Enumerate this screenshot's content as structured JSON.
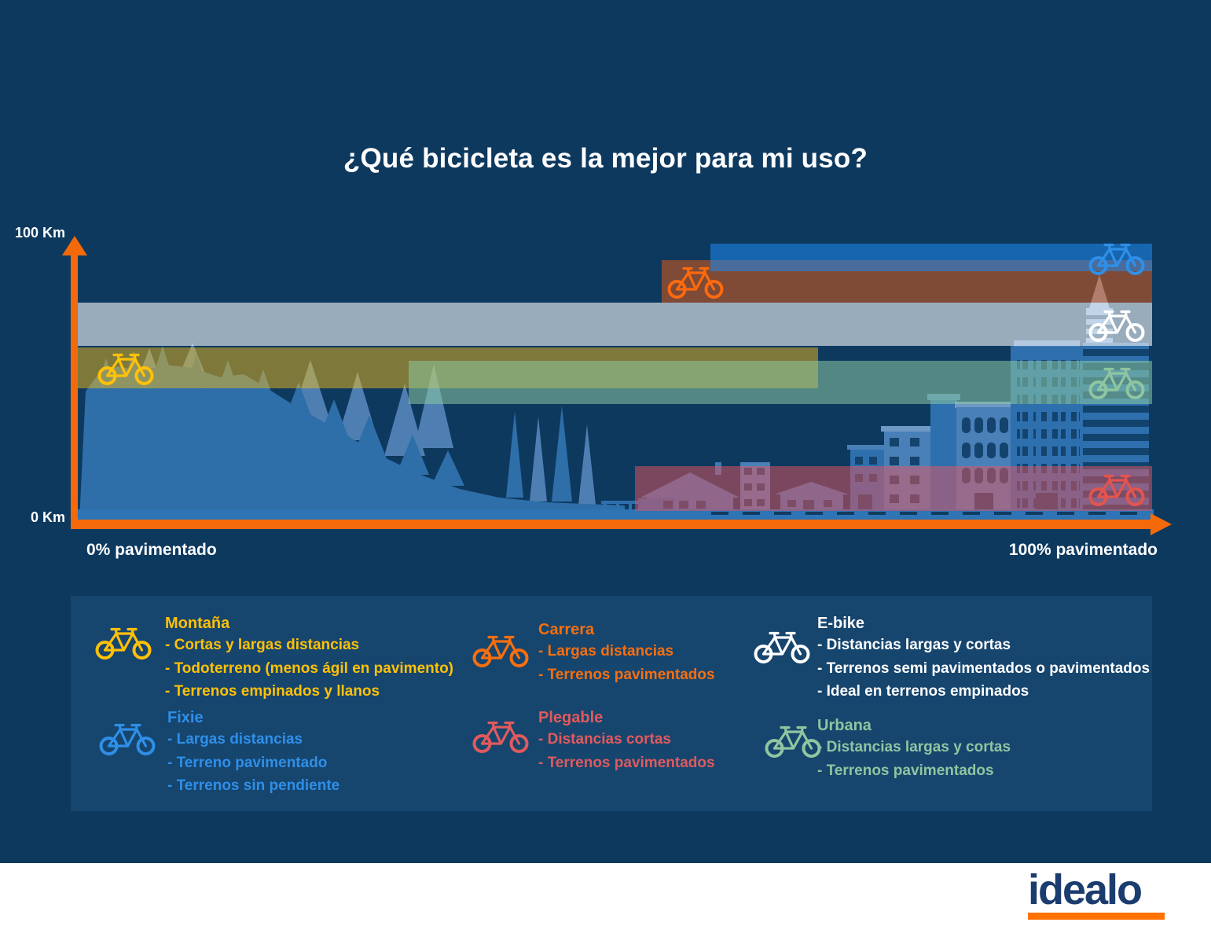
{
  "title": "¿Qué bicicleta es la mejor para mi uso?",
  "axes": {
    "y_top_label": "100 Km",
    "y_bottom_label": "0 Km",
    "x_left_label": "0% pavimentado",
    "x_right_label": "100% pavimentado"
  },
  "chart_data": {
    "type": "area",
    "title": "¿Qué bicicleta es la mejor para mi uso?",
    "xlabel": "% pavimentado",
    "ylabel": "Km",
    "x_range_pct": [
      0,
      100
    ],
    "y_range_km": [
      0,
      100
    ],
    "grid": false,
    "bands": [
      {
        "id": "carrera",
        "name": "Carrera",
        "pct_paved": [
          54.5,
          100
        ],
        "distance_km": [
          78.5,
          94
        ],
        "color": "rgba(250,95,10,0.48)",
        "bike_color": "#fd6a0d",
        "bike_at": "start"
      },
      {
        "id": "fixie",
        "name": "Fixie",
        "pct_paved": [
          59,
          100
        ],
        "distance_km": [
          90,
          100
        ],
        "color": "rgba(30,135,235,0.57)",
        "bike_color": "#2f8fe8",
        "bike_at": "end"
      },
      {
        "id": "ebike",
        "name": "E-bike",
        "pct_paved": [
          0,
          100
        ],
        "distance_km": [
          63,
          78.5
        ],
        "color": "rgba(255,255,255,0.58)",
        "bike_color": "#ffffff",
        "bike_at": "end"
      },
      {
        "id": "montana",
        "name": "Montaña",
        "pct_paved": [
          0,
          69
        ],
        "distance_km": [
          47.5,
          62.5
        ],
        "color": "rgba(252,193,20,0.47)",
        "bike_color": "#ffc107",
        "bike_at": "start"
      },
      {
        "id": "urbana",
        "name": "Urbana",
        "pct_paved": [
          31,
          100
        ],
        "distance_km": [
          42,
          57.5
        ],
        "color": "rgba(140,200,160,0.55)",
        "bike_color": "#8fc5a0",
        "bike_at": "end"
      },
      {
        "id": "plegable",
        "name": "Plegable",
        "pct_paved": [
          52,
          100
        ],
        "distance_km": [
          3,
          19.5
        ],
        "color": "rgba(230,85,95,0.50)",
        "bike_color": "#e4544e",
        "bike_at": "end"
      }
    ]
  },
  "legend": {
    "montana": {
      "title": "Montaña",
      "color": "#ffc107",
      "lines": [
        "- Cortas y largas distancias",
        "- Todoterreno (menos ágil en pavimento)",
        "- Terrenos empinados y llanos"
      ]
    },
    "fixie": {
      "title": "Fixie",
      "color": "#2f8fe8",
      "lines": [
        "- Largas distancias",
        "- Terreno pavimentado",
        "- Terrenos sin pendiente"
      ]
    },
    "carrera": {
      "title": "Carrera",
      "color": "#f76f0e",
      "lines": [
        "- Largas distancias",
        "- Terrenos pavimentados"
      ]
    },
    "plegable": {
      "title": "Plegable",
      "color": "#e05a5d",
      "lines": [
        "- Distancias cortas",
        "- Terrenos pavimentados"
      ]
    },
    "ebike": {
      "title": "E-bike",
      "color": "#ffffff",
      "lines": [
        "- Distancias largas y cortas",
        "- Terrenos semi pavimentados o pavimentados",
        "- Ideal en terrenos empinados"
      ]
    },
    "urbana": {
      "title": "Urbana",
      "color": "#8fc5a0",
      "lines": [
        "- Distancias largas y cortas",
        "- Terrenos pavimentados"
      ]
    }
  },
  "footer": {
    "logo_text": "idealo",
    "logo_color": "#1b3c6e",
    "underline_color": "#ff7100"
  },
  "colors": {
    "background": "#0e395f",
    "panel": "#16456e",
    "axis": "#f4690a",
    "footer_bg": "#ffffff"
  }
}
